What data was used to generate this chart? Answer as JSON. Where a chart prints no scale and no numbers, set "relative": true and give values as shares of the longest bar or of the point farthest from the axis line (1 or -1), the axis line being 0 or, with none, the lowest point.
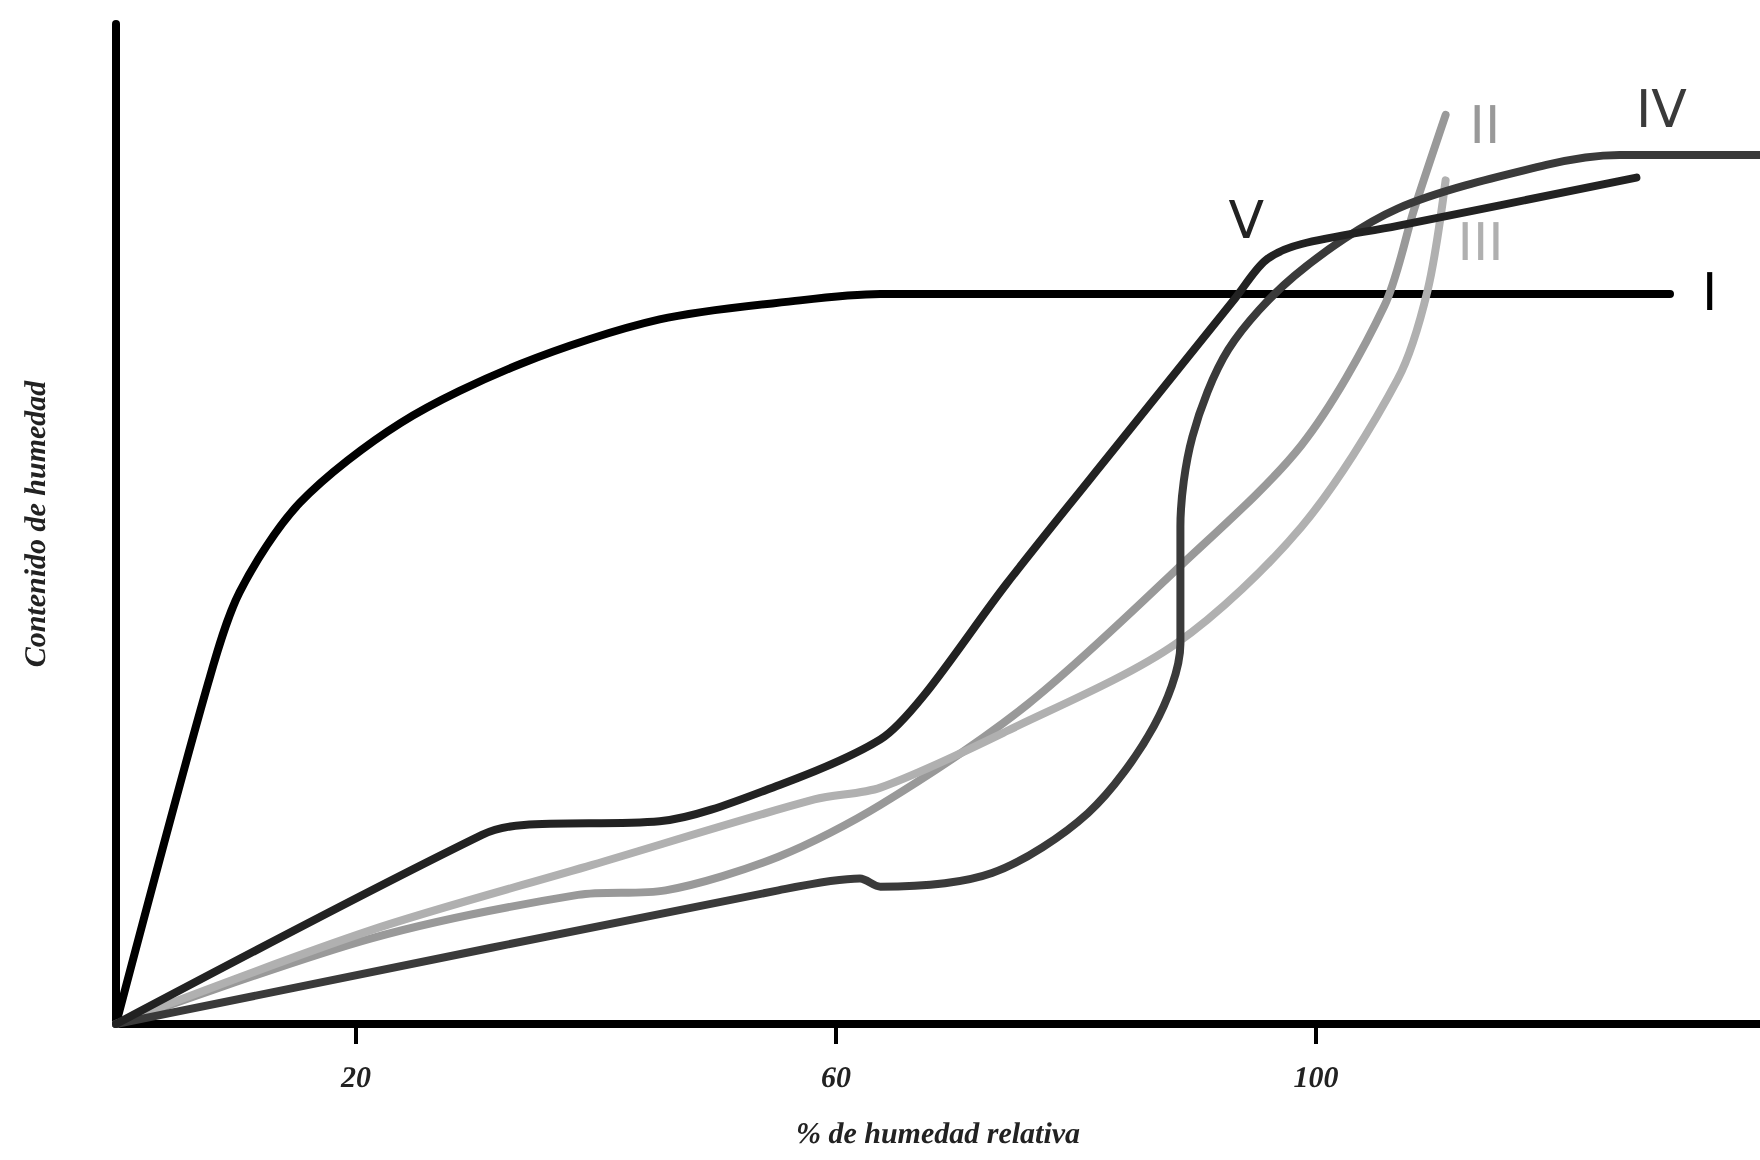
{
  "chart_data": {
    "type": "line",
    "relative": true,
    "xlabel": "% de humedad relativa",
    "ylabel": "Contenido de humedad",
    "xlim": [
      0,
      137
    ],
    "xticks": [
      20,
      60,
      100
    ],
    "grid": false,
    "legend": false,
    "marker": "none",
    "line_style": "solid",
    "series": [
      {
        "name": "I",
        "color": "#000000",
        "x": [
          0,
          7.7,
          10.3,
          15.3,
          23.7,
          33.7,
          45.3,
          57,
          63.7,
          129.5
        ],
        "values": [
          0,
          0.376,
          0.475,
          0.573,
          0.661,
          0.726,
          0.775,
          0.796,
          0.803,
          0.803
        ]
      },
      {
        "name": "II",
        "color": "#999999",
        "x": [
          0,
          21.2,
          38.5,
          45.8,
          55.2,
          63.7,
          76,
          88.3,
          98.8,
          105.7,
          108.2,
          110.8
        ],
        "values": [
          0,
          0.094,
          0.142,
          0.147,
          0.184,
          0.241,
          0.352,
          0.499,
          0.637,
          0.79,
          0.897,
          1
        ]
      },
      {
        "name": "III",
        "color": "#b0b0b0",
        "x": [
          0,
          21.2,
          39.7,
          58.2,
          63.7,
          74.2,
          88.3,
          98.8,
          106.8,
          109.3,
          110.8
        ],
        "values": [
          0,
          0.103,
          0.175,
          0.247,
          0.26,
          0.322,
          0.418,
          0.547,
          0.709,
          0.807,
          0.928
        ]
      },
      {
        "name": "IV",
        "color": "#3a3a3a",
        "x": [
          0,
          55.2,
          62,
          63.7,
          73,
          81,
          86.5,
          88.7,
          88.7,
          89.7,
          92.7,
          98.2,
          106.8,
          119.2,
          125.3,
          137
        ],
        "values": [
          0,
          0.147,
          0.16,
          0.151,
          0.166,
          0.232,
          0.328,
          0.418,
          0.547,
          0.646,
          0.742,
          0.823,
          0.897,
          0.945,
          0.956,
          0.956
        ]
      },
      {
        "name": "V",
        "color": "#222222",
        "x": [
          0,
          30.5,
          34,
          45.3,
          55.3,
          63.7,
          67.3,
          74.2,
          84,
          93.3,
          95.8,
          98.8,
          106.8,
          126.7
        ],
        "values": [
          0,
          0.208,
          0.219,
          0.223,
          0.263,
          0.313,
          0.361,
          0.484,
          0.646,
          0.799,
          0.84,
          0.858,
          0.878,
          0.931
        ]
      }
    ]
  }
}
